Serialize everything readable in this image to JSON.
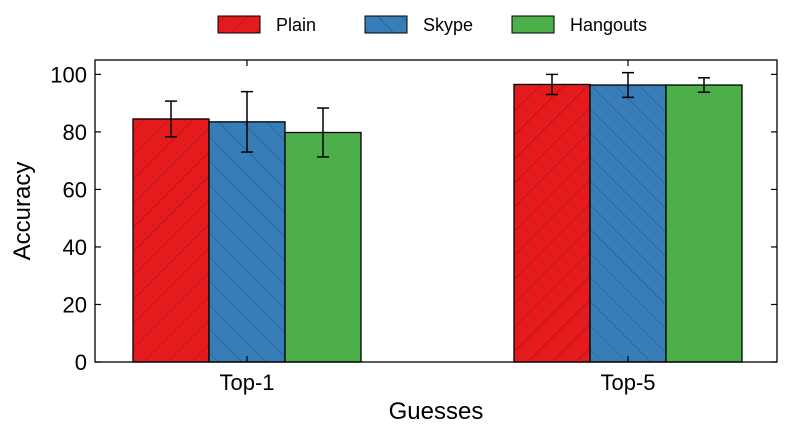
{
  "chart_data": {
    "type": "bar",
    "title": "",
    "xlabel": "Guesses",
    "ylabel": "Accuracy",
    "categories": [
      "Top-1",
      "Top-5"
    ],
    "ylim": [
      0,
      105
    ],
    "yticks": [
      0,
      20,
      40,
      60,
      80,
      100
    ],
    "ytick_labels": [
      "0",
      "20",
      "40",
      "60",
      "80",
      "100"
    ],
    "legend_position": "top-center",
    "grid": false,
    "series": [
      {
        "name": "Plain",
        "color": "#e41a1c",
        "hatch": "backslash",
        "values": [
          84.5,
          96.5
        ],
        "error": [
          6.2,
          3.5
        ]
      },
      {
        "name": "Skype",
        "color": "#377eb8",
        "hatch": "slash",
        "values": [
          83.5,
          96.3
        ],
        "error": [
          10.5,
          4.3
        ]
      },
      {
        "name": "Hangouts",
        "color": "#4daf4a",
        "hatch": "none",
        "values": [
          79.8,
          96.3
        ],
        "error": [
          8.5,
          2.5
        ]
      }
    ]
  }
}
